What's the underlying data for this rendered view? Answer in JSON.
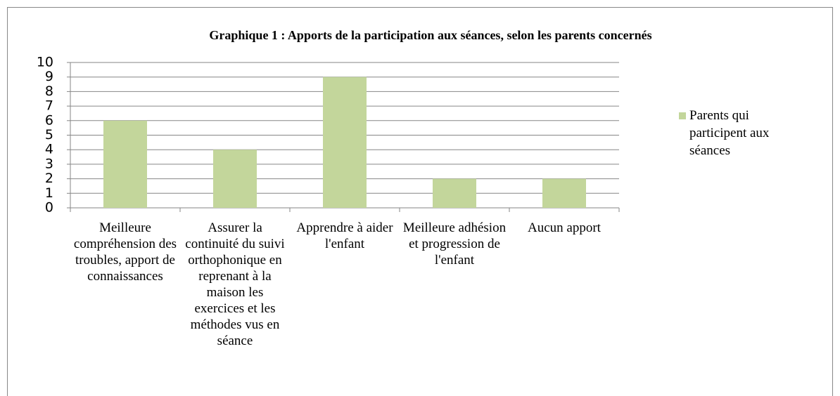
{
  "chart_data": {
    "type": "bar",
    "title": "Graphique 1 : Apports de la participation aux séances, selon les parents concernés",
    "categories": [
      "Meilleure compréhension des troubles, apport de connaissances",
      "Assurer la continuité du suivi orthophonique en reprenant à la maison les exercices et les méthodes vus en séance",
      "Apprendre à aider l'enfant",
      "Meilleure adhésion et progression de l'enfant",
      "Aucun apport"
    ],
    "series": [
      {
        "name": "Parents qui participent aux séances",
        "color": "#c3d69b",
        "values": [
          6,
          4,
          9,
          2,
          2
        ]
      }
    ],
    "ylim": [
      0,
      10
    ],
    "yticks": [
      0,
      1,
      2,
      3,
      4,
      5,
      6,
      7,
      8,
      9,
      10
    ],
    "grid": true,
    "legend": "right"
  }
}
